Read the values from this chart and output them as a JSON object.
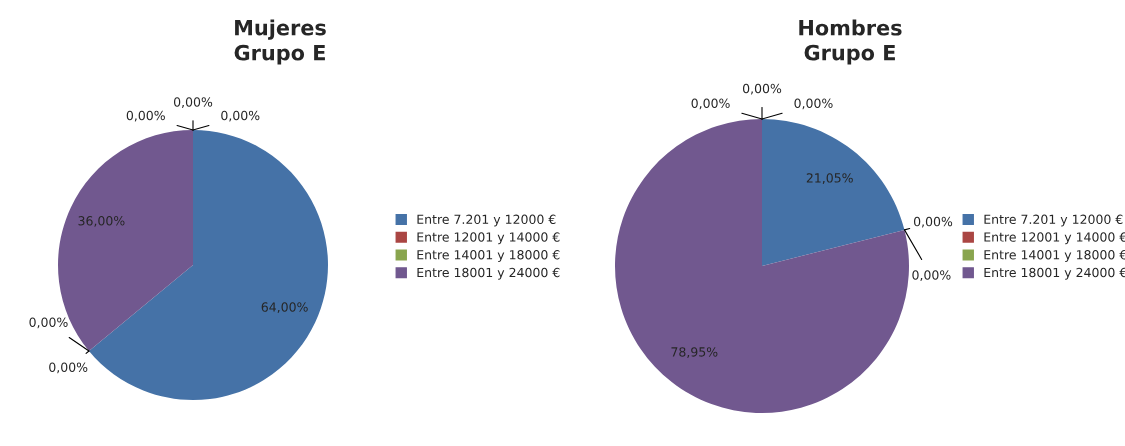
{
  "chart_data": [
    {
      "type": "pie",
      "title": "Mujeres\nGrupo E",
      "categories": [
        "Entre 7.201 y 12000 €",
        "Entre 12001 y 14000 €",
        "Entre 14001 y 18000 €",
        "Entre 18001 y 24000 €",
        null,
        null,
        null
      ],
      "values": [
        64,
        0,
        0,
        36,
        0,
        0,
        0
      ],
      "colors": [
        "#4572a7",
        "#aa4643",
        "#89a54e",
        "#71588f",
        "#4198af",
        "#db843d",
        "#93a9cf"
      ],
      "value_labels": [
        "64,00%",
        "0,00%",
        "0,00%",
        "36,00%",
        "0,00%",
        "0,00%",
        "0,00%"
      ],
      "legend": "right"
    },
    {
      "type": "pie",
      "title": "Hombres\nGrupo E",
      "categories": [
        "Entre 7.201 y 12000 €",
        "Entre 12001 y 14000 €",
        "Entre 14001 y 18000 €",
        "Entre 18001 y 24000 €",
        null,
        null,
        null
      ],
      "values": [
        21.05,
        0,
        0,
        78.95,
        0,
        0,
        0
      ],
      "colors": [
        "#4572a7",
        "#aa4643",
        "#89a54e",
        "#71588f",
        "#4198af",
        "#db843d",
        "#93a9cf"
      ],
      "value_labels": [
        "21,05%",
        "0,00%",
        "0,00%",
        "78,95%",
        "0,00%",
        "0,00%",
        "0,00%"
      ],
      "legend": "right"
    }
  ]
}
